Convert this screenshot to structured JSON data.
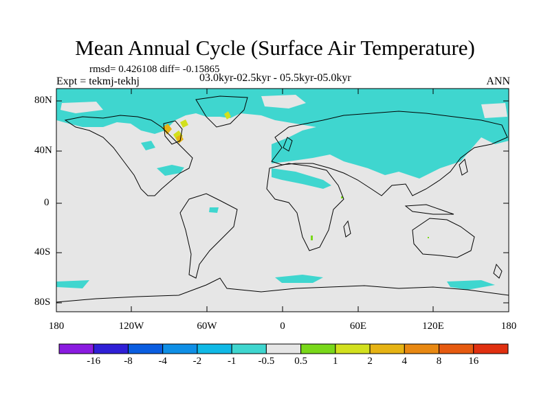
{
  "title": "Mean Annual Cycle (Surface Air Temperature)",
  "stats": "rmsd= 0.426108 diff= -0.15865",
  "experiment": "Expt = tekmj-tekhj",
  "period": "03.0kyr-02.5kyr - 05.5kyr-05.0kyr",
  "season": "ANN",
  "lat_labels": [
    "80N",
    "40N",
    "0",
    "40S",
    "80S"
  ],
  "lon_labels": [
    "180",
    "120W",
    "60W",
    "0",
    "60E",
    "120E",
    "180"
  ],
  "colorbar": {
    "labels": [
      "-16",
      "-8",
      "-4",
      "-2",
      "-1",
      "-0.5",
      "0.5",
      "1",
      "2",
      "4",
      "8",
      "16"
    ],
    "colors": [
      "#8a1be0",
      "#2f1fd6",
      "#0a5de0",
      "#0f8fe6",
      "#10b9e6",
      "#3fd6cf",
      "#e6e6e6",
      "#79d81a",
      "#d2e01e",
      "#e6b314",
      "#e88812",
      "#e65a10",
      "#e03010"
    ]
  },
  "colors": {
    "background_field": "#e6e6e6",
    "negative_anomaly": "#3fd6cf",
    "coastline": "#000000"
  }
}
